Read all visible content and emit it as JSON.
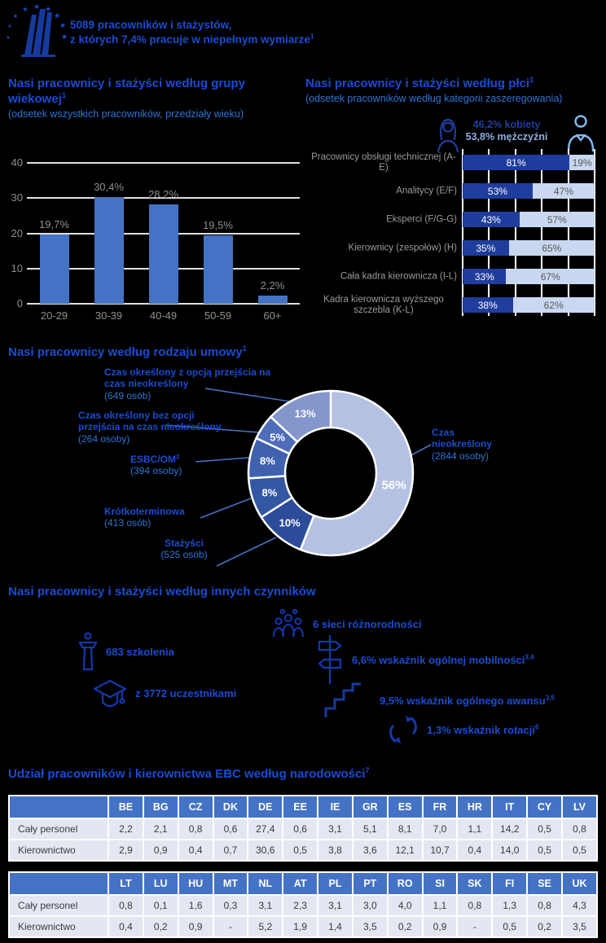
{
  "header": {
    "line1": "5089 pracowników i stażystów,",
    "line2": "z których 7,4% pracuje w niepełnym wymiarze",
    "line2_sup": "1"
  },
  "age_section": {
    "title": "Nasi pracownicy i stażyści według grupy wiekowej",
    "title_sup": "1",
    "subtitle": "(odsetek wszystkich pracowników, przedziały wieku)"
  },
  "gender_section": {
    "title": "Nasi pracownicy i stażyści według płci",
    "title_sup": "1",
    "subtitle": "(odsetek pracowników według kategorii zaszeregowania)",
    "legend_women": "46,2% kobiety",
    "legend_men": "53,8% mężczyźni"
  },
  "contract_section": {
    "title": "Nasi pracownicy według rodzaju umowy",
    "title_sup": "1"
  },
  "factors_section": {
    "title": "Nasi pracownicy i stażyści według innych czynników",
    "items": [
      {
        "icon": "diversity-people-icon",
        "text": "6 sieci różnorodności",
        "sup": ""
      },
      {
        "icon": "lectern-icon",
        "text": "683 szkolenia",
        "sup": ""
      },
      {
        "icon": "signpost-icon",
        "text": "6,6% wskaźnik ogólnej mobilności",
        "sup": "3,4"
      },
      {
        "icon": "graduation-cap-icon",
        "text": "z 3772 uczestnikami",
        "sup": ""
      },
      {
        "icon": "stairs-icon",
        "text": "9,5% wskaźnik ogólnego awansu",
        "sup": "3,5"
      },
      {
        "icon": "rotation-icon",
        "text": "1,3% wskaźnik rotacji",
        "sup": "6"
      }
    ]
  },
  "nationality_section": {
    "title": "Udział pracowników i kierownictwa EBC według narodowości",
    "title_sup": "7",
    "row_labels": [
      "Cały personel",
      "Kierownictwo"
    ],
    "tables": [
      {
        "columns": [
          "BE",
          "BG",
          "CZ",
          "DK",
          "DE",
          "EE",
          "IE",
          "GR",
          "ES",
          "FR",
          "HR",
          "IT",
          "CY",
          "LV"
        ],
        "rows": [
          [
            "2,2",
            "2,1",
            "0,8",
            "0,6",
            "27,4",
            "0,6",
            "3,1",
            "5,1",
            "8,1",
            "7,0",
            "1,1",
            "14,2",
            "0,5",
            "0,8"
          ],
          [
            "2,9",
            "0,9",
            "0,4",
            "0,7",
            "30,6",
            "0,5",
            "3,8",
            "3,6",
            "12,1",
            "10,7",
            "0,4",
            "14,0",
            "0,5",
            "0,5"
          ]
        ]
      },
      {
        "columns": [
          "LT",
          "LU",
          "HU",
          "MT",
          "NL",
          "AT",
          "PL",
          "PT",
          "RO",
          "SI",
          "SK",
          "FI",
          "SE",
          "UK"
        ],
        "rows": [
          [
            "0,8",
            "0,1",
            "1,6",
            "0,3",
            "3,1",
            "2,3",
            "3,1",
            "3,0",
            "4,0",
            "1,1",
            "0,8",
            "1,3",
            "0,8",
            "4,3"
          ],
          [
            "0,4",
            "0,2",
            "0,9",
            "-",
            "5,2",
            "1,9",
            "1,4",
            "3,5",
            "0,2",
            "0,9",
            "-",
            "0,5",
            "0,2",
            "3,5"
          ]
        ]
      }
    ]
  },
  "colors": {
    "heading_blue": "#1A4BD1",
    "subtitle_blue": "#2E74D6",
    "bar_blue": "#4472C4",
    "women_dark": "#1F3D9C",
    "men_light": "#C9D7F0",
    "table_header": "#4472C4",
    "table_cell": "#E4E7F1"
  },
  "chart_data": [
    {
      "type": "bar",
      "title": "Nasi pracownicy i stażyści według grupy wiekowej",
      "categories": [
        "20-29",
        "30-39",
        "40-49",
        "50-59",
        "60+"
      ],
      "values": [
        19.7,
        30.4,
        28.2,
        19.5,
        2.2
      ],
      "value_labels": [
        "19,7%",
        "30,4%",
        "28,2%",
        "19,5%",
        "2,2%"
      ],
      "xlabel": "przedziały wieku",
      "ylabel": "odsetek pracowników",
      "ylim": [
        0,
        40
      ],
      "yticks": [
        0,
        10,
        20,
        30,
        40
      ],
      "grid": true,
      "bar_color": "#4472C4"
    },
    {
      "type": "bar",
      "subtype": "horizontal-stacked",
      "title": "Nasi pracownicy i stażyści według płci",
      "categories": [
        "Pracownicy obsługi technicznej (A-E)",
        "Analitycy (E/F)",
        "Eksperci (F/G-G)",
        "Kierownicy (zespołów) (H)",
        "Cała kadra kierownicza (I-L)",
        "Kadra kierownicza wyższego szczebla (K-L)"
      ],
      "series": [
        {
          "name": "kobiety",
          "color": "#1F3D9C",
          "values": [
            81,
            53,
            43,
            35,
            33,
            38
          ]
        },
        {
          "name": "mężczyźni",
          "color": "#C9D7F0",
          "values": [
            19,
            47,
            57,
            65,
            67,
            62
          ]
        }
      ],
      "xlim": [
        0,
        100
      ],
      "grid": true
    },
    {
      "type": "pie",
      "subtype": "donut",
      "title": "Nasi pracownicy według rodzaju umowy",
      "segments": [
        {
          "label": "Czas nieokreślony",
          "count": "(2844 osoby)",
          "value": 56,
          "pct_label": "56%",
          "color": "#B5C1E3"
        },
        {
          "label": "Stażyści",
          "count": "(525 osób)",
          "value": 10,
          "pct_label": "10%",
          "color": "#2C4C9A"
        },
        {
          "label": "Krótkoterminowa",
          "count": "(413 osób)",
          "value": 8,
          "pct_label": "8%",
          "color": "#3357A3"
        },
        {
          "label": "ESBC/OM",
          "label_sup": "2",
          "count": "(394 osoby)",
          "value": 8,
          "pct_label": "8%",
          "color": "#3F61AE"
        },
        {
          "label": "Czas określony bez opcji przejścia na czas nieokreślony",
          "count": "(264 osoby)",
          "value": 5,
          "pct_label": "5%",
          "color": "#4E6DB8"
        },
        {
          "label": "Czas określony z opcją przejścia na czas nieokreślony",
          "count": "(649 osób)",
          "value": 13,
          "pct_label": "13%",
          "color": "#8496CC"
        }
      ]
    }
  ]
}
